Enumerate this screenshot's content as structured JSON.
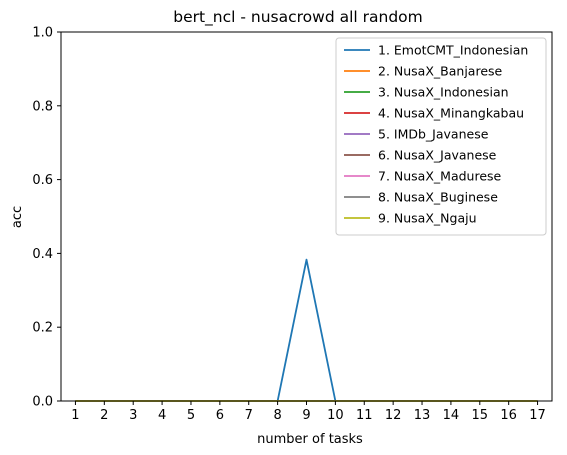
{
  "chart_data": {
    "type": "line",
    "title": "bert_ncl - nusacrowd all random",
    "xlabel": "number of tasks",
    "ylabel": "acc",
    "xlim": [
      0.5,
      17.5
    ],
    "ylim": [
      0,
      1
    ],
    "xticks": [
      1,
      2,
      3,
      4,
      5,
      6,
      7,
      8,
      9,
      10,
      11,
      12,
      13,
      14,
      15,
      16,
      17
    ],
    "yticks": [
      0.0,
      0.2,
      0.4,
      0.6,
      0.8,
      1.0
    ],
    "ytick_labels": [
      "0.0",
      "0.2",
      "0.4",
      "0.6",
      "0.8",
      "1.0"
    ],
    "grid": false,
    "legend_position": "upper right",
    "x": [
      1,
      2,
      3,
      4,
      5,
      6,
      7,
      8,
      9,
      10,
      11,
      12,
      13,
      14,
      15,
      16,
      17
    ],
    "series": [
      {
        "name": "1. EmotCMT_Indonesian",
        "color": "#1f77b4",
        "values": [
          0,
          0,
          0,
          0,
          0,
          0,
          0,
          0,
          0.383,
          0,
          0,
          0,
          0,
          0,
          0,
          0,
          0
        ]
      },
      {
        "name": "2. NusaX_Banjarese",
        "color": "#ff7f0e",
        "values": [
          0,
          0,
          0,
          0,
          0,
          0,
          0,
          0,
          0,
          0,
          0,
          0,
          0,
          0,
          0,
          0,
          0
        ]
      },
      {
        "name": "3. NusaX_Indonesian",
        "color": "#2ca02c",
        "values": [
          0,
          0,
          0,
          0,
          0,
          0,
          0,
          0,
          0,
          0,
          0,
          0,
          0,
          0,
          0,
          0,
          0
        ]
      },
      {
        "name": "4. NusaX_Minangkabau",
        "color": "#d62728",
        "values": [
          0,
          0,
          0,
          0,
          0,
          0,
          0,
          0,
          0,
          0,
          0,
          0,
          0,
          0,
          0,
          0,
          0
        ]
      },
      {
        "name": "5. IMDb_Javanese",
        "color": "#9467bd",
        "values": [
          0,
          0,
          0,
          0,
          0,
          0,
          0,
          0,
          0,
          0,
          0,
          0,
          0,
          0,
          0,
          0,
          0
        ]
      },
      {
        "name": "6. NusaX_Javanese",
        "color": "#8c564b",
        "values": [
          0,
          0,
          0,
          0,
          0,
          0,
          0,
          0,
          0,
          0,
          0,
          0,
          0,
          0,
          0,
          0,
          0
        ]
      },
      {
        "name": "7. NusaX_Madurese",
        "color": "#e377c2",
        "values": [
          0,
          0,
          0,
          0,
          0,
          0,
          0,
          0,
          0,
          0,
          0,
          0,
          0,
          0,
          0,
          0,
          0
        ]
      },
      {
        "name": "8. NusaX_Buginese",
        "color": "#7f7f7f",
        "values": [
          0,
          0,
          0,
          0,
          0,
          0,
          0,
          0,
          0,
          0,
          0,
          0,
          0,
          0,
          0,
          0,
          0
        ]
      },
      {
        "name": "9. NusaX_Ngaju",
        "color": "#bcbd22",
        "values": [
          0,
          0,
          0,
          0,
          0,
          0,
          0,
          0,
          0,
          0,
          0,
          0,
          0,
          0,
          0,
          0,
          0
        ]
      }
    ]
  }
}
